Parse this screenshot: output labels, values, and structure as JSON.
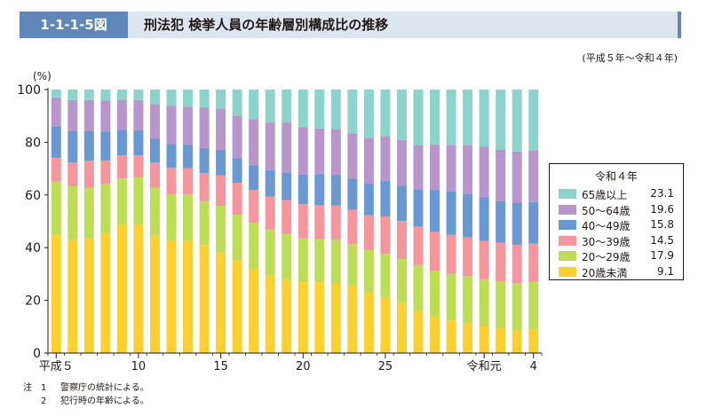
{
  "header": {
    "badge": "1-1-1-5図",
    "title": "刑法犯 検挙人員の年齢層別構成比の推移"
  },
  "period_note": "(平成５年〜令和４年)",
  "chart_data": {
    "type": "bar",
    "stacked": true,
    "title": "",
    "ylabel": "(%)",
    "ylim": [
      0,
      100
    ],
    "yticks": [
      0,
      20,
      40,
      60,
      80,
      100
    ],
    "x_tick_labels": [
      {
        "index": 0,
        "label": "平成５"
      },
      {
        "index": 5,
        "label": "10"
      },
      {
        "index": 10,
        "label": "15"
      },
      {
        "index": 15,
        "label": "20"
      },
      {
        "index": 20,
        "label": "25"
      },
      {
        "index": 26,
        "label": "令和元"
      },
      {
        "index": 29,
        "label": "4"
      }
    ],
    "categories": [
      "H5",
      "H6",
      "H7",
      "H8",
      "H9",
      "H10",
      "H11",
      "H12",
      "H13",
      "H14",
      "H15",
      "H16",
      "H17",
      "H18",
      "H19",
      "H20",
      "H21",
      "H22",
      "H23",
      "H24",
      "H25",
      "H26",
      "H27",
      "H28",
      "H29",
      "H30",
      "R1",
      "R2",
      "R3",
      "R4"
    ],
    "series": [
      {
        "name": "20歳未満",
        "color": "#fcd02f",
        "values": [
          44.9,
          43.0,
          43.2,
          45.2,
          48.8,
          48.6,
          44.8,
          42.7,
          42.5,
          41.0,
          38.1,
          35.3,
          32.0,
          29.4,
          28.0,
          26.9,
          26.9,
          26.6,
          25.7,
          22.7,
          21.2,
          19.3,
          16.0,
          13.5,
          12.4,
          11.3,
          10.1,
          9.4,
          8.6,
          9.1
        ]
      },
      {
        "name": "20〜29歳",
        "color": "#bedd55",
        "values": [
          20.2,
          20.3,
          19.6,
          18.9,
          17.5,
          18.2,
          18.0,
          17.6,
          17.8,
          16.7,
          17.8,
          17.2,
          17.5,
          17.5,
          17.2,
          16.6,
          16.3,
          16.4,
          15.6,
          16.4,
          16.4,
          16.4,
          17.4,
          17.6,
          17.7,
          18.0,
          17.9,
          17.9,
          17.9,
          17.9
        ]
      },
      {
        "name": "30〜39歳",
        "color": "#f4969b",
        "values": [
          9.0,
          9.0,
          10.2,
          9.0,
          8.7,
          8.2,
          9.5,
          10.0,
          9.9,
          10.6,
          11.6,
          12.1,
          12.4,
          12.5,
          12.8,
          13.0,
          12.9,
          13.0,
          13.1,
          13.2,
          14.2,
          14.4,
          14.6,
          14.8,
          14.8,
          14.6,
          14.6,
          14.6,
          14.6,
          14.5
        ]
      },
      {
        "name": "40〜49歳",
        "color": "#6a98d3",
        "values": [
          12.0,
          12.0,
          11.4,
          11.0,
          9.8,
          9.5,
          9.0,
          9.1,
          9.0,
          9.5,
          9.6,
          9.3,
          9.3,
          10.0,
          10.6,
          11.3,
          11.8,
          11.5,
          11.8,
          12.0,
          13.5,
          13.5,
          14.2,
          16.0,
          16.4,
          16.5,
          16.5,
          15.8,
          15.8,
          15.8
        ]
      },
      {
        "name": "50〜64歳",
        "color": "#b896cc",
        "values": [
          10.7,
          11.7,
          11.6,
          11.8,
          11.3,
          11.5,
          13.2,
          14.5,
          14.3,
          15.3,
          15.7,
          16.2,
          17.6,
          18.1,
          18.9,
          18.0,
          17.4,
          17.5,
          17.2,
          17.3,
          17.1,
          17.3,
          16.8,
          17.3,
          17.5,
          18.4,
          19.2,
          19.4,
          19.6,
          19.6
        ]
      },
      {
        "name": "65歳以上",
        "color": "#8ad4cb",
        "values": [
          3.2,
          4.0,
          4.0,
          4.1,
          3.9,
          4.0,
          5.5,
          6.1,
          6.5,
          6.9,
          7.2,
          9.9,
          11.2,
          12.5,
          12.5,
          14.2,
          14.7,
          15.0,
          16.6,
          18.4,
          17.6,
          19.1,
          21.0,
          20.8,
          21.2,
          21.2,
          21.7,
          22.9,
          23.5,
          23.1
        ]
      }
    ]
  },
  "legend": {
    "title": "令和４年",
    "items": [
      {
        "label": "65歳以上",
        "value": "23.1",
        "color": "#8ad4cb"
      },
      {
        "label": "50〜64歳",
        "value": "19.6",
        "color": "#b896cc"
      },
      {
        "label": "40〜49歳",
        "value": "15.8",
        "color": "#6a98d3"
      },
      {
        "label": "30〜39歳",
        "value": "14.5",
        "color": "#f4969b"
      },
      {
        "label": "20〜29歳",
        "value": "17.9",
        "color": "#bedd55"
      },
      {
        "label": "20歳未満",
        "value": "9.1",
        "color": "#fcd02f"
      }
    ]
  },
  "notes": {
    "head": "注",
    "items": [
      {
        "num": "1",
        "text": "警察庁の統計による。"
      },
      {
        "num": "2",
        "text": "犯行時の年齢による。"
      }
    ]
  }
}
